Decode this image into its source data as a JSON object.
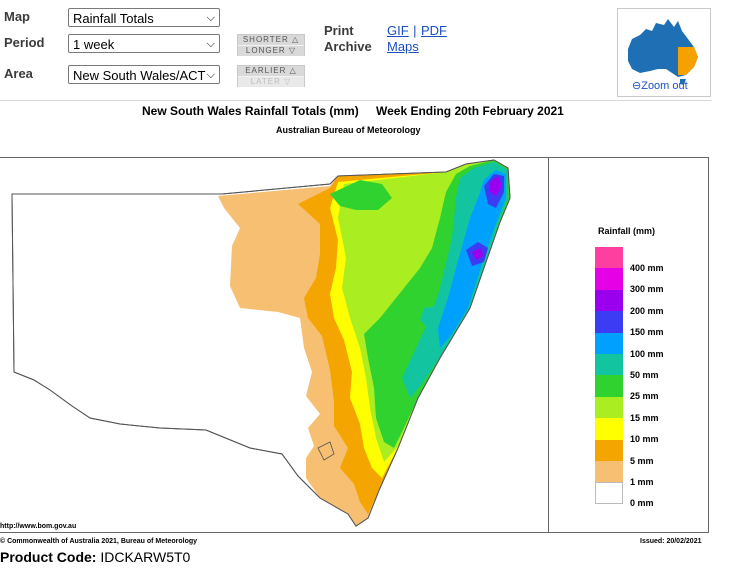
{
  "controls": {
    "map_label": "Map",
    "map_value": "Rainfall Totals",
    "period_label": "Period",
    "period_value": "1 week",
    "area_label": "Area",
    "area_value": "New South Wales/ACT",
    "shorter_label": "SHORTER",
    "longer_label": "LONGER",
    "earlier_label": "EARLIER",
    "later_label": "LATER"
  },
  "print_archive": {
    "print_label": "Print",
    "archive_label": "Archive",
    "gif_link": "GIF",
    "separator": "|",
    "pdf_link": "PDF",
    "maps_link": "Maps"
  },
  "thumbnail": {
    "zoom_out_label": "Zoom out"
  },
  "map": {
    "title": "New South Wales Rainfall Totals (mm)",
    "week_ending": "Week Ending 20th February 2021",
    "subtitle": "Australian Bureau of Meteorology",
    "website": "http://www.bom.gov.au",
    "copyright": "© Commonwealth of Australia 2021, Bureau of Meteorology",
    "issued": "Issued: 20/02/2021"
  },
  "legend": {
    "title": "Rainfall (mm)",
    "entries": [
      {
        "label": "400 mm",
        "color": "#ff3fa0"
      },
      {
        "label": "300 mm",
        "color": "#e600e6"
      },
      {
        "label": "200 mm",
        "color": "#9b00ee"
      },
      {
        "label": "150 mm",
        "color": "#3c3cf5"
      },
      {
        "label": "100 mm",
        "color": "#00a0ff"
      },
      {
        "label": "50 mm",
        "color": "#12c5a0"
      },
      {
        "label": "25 mm",
        "color": "#30d230"
      },
      {
        "label": "15 mm",
        "color": "#aaee22"
      },
      {
        "label": "10 mm",
        "color": "#ffff00"
      },
      {
        "label": "5 mm",
        "color": "#f5a500"
      },
      {
        "label": "1 mm",
        "color": "#f7bf72"
      },
      {
        "label": "0 mm",
        "color": "#ffffff"
      }
    ]
  },
  "footer": {
    "product_code_label": "Product Code:",
    "product_code": "IDCKARW5T0"
  }
}
